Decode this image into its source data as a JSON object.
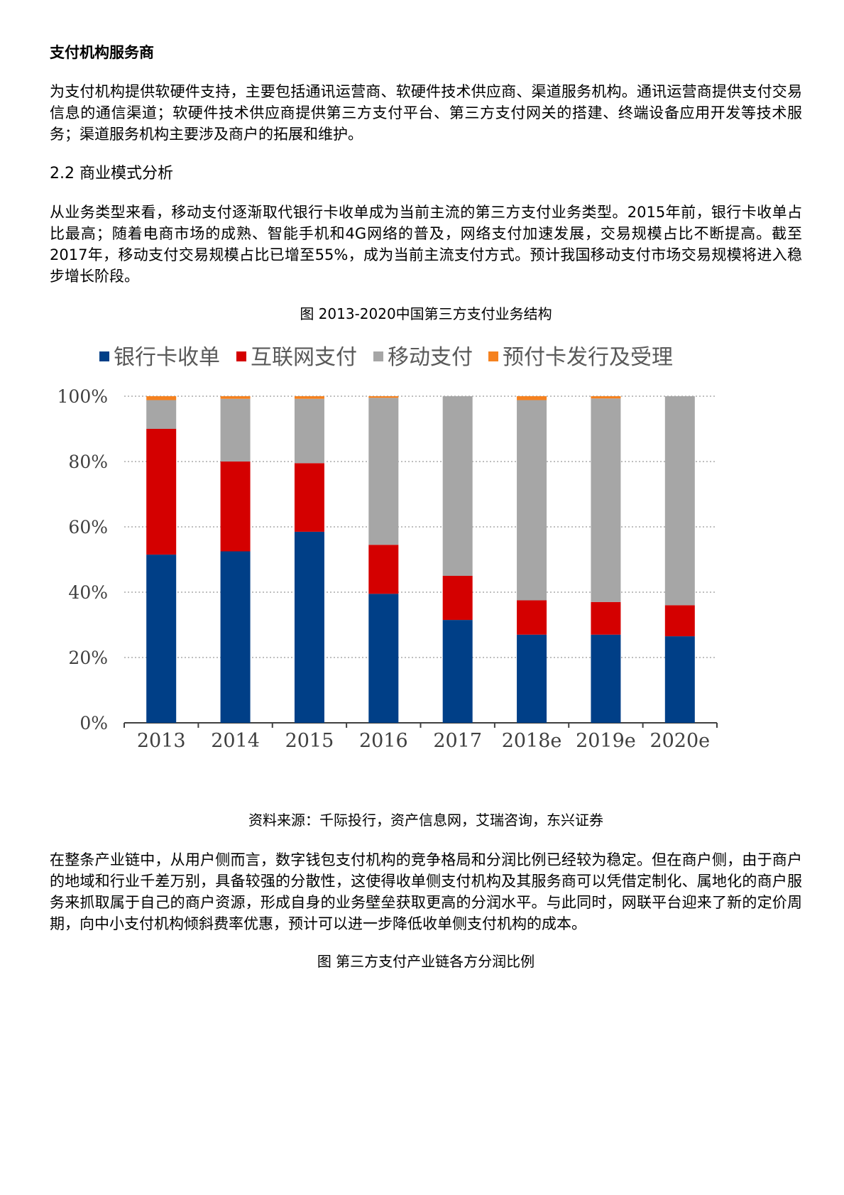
{
  "section1": {
    "heading": "支付机构服务商",
    "body": "为支付机构提供软硬件支持，主要包括通讯运营商、软硬件技术供应商、渠道服务机构。通讯运营商提供支付交易信息的通信渠道；软硬件技术供应商提供第三方支付平台、第三方支付网关的搭建、终端设备应用开发等技术服务；渠道服务机构主要涉及商户的拓展和维护。"
  },
  "section2": {
    "heading": "2.2 商业模式分析",
    "body": "从业务类型来看，移动支付逐渐取代银行卡收单成为当前主流的第三方支付业务类型。2015年前，银行卡收单占比最高；随着电商市场的成熟、智能手机和4G网络的普及，网络支付加速发展，交易规模占比不断提高。截至2017年，移动支付交易规模占比已增至55%，成为当前主流支付方式。预计我国移动支付市场交易规模将进入稳步增长阶段。"
  },
  "figure1": {
    "caption": "图 2013-2020中国第三方支付业务结构",
    "source": "资料来源：千际投行，资产信息网，艾瑞咨询，东兴证券"
  },
  "chart_data": {
    "type": "bar",
    "stacked": true,
    "categories": [
      "2013",
      "2014",
      "2015",
      "2016",
      "2017",
      "2018e",
      "2019e",
      "2020e"
    ],
    "series": [
      {
        "name": "银行卡收单",
        "color": "#003f87",
        "values": [
          51.5,
          52.5,
          58.5,
          39.5,
          31.5,
          27.0,
          27.0,
          26.5
        ]
      },
      {
        "name": "互联网支付",
        "color": "#d40000",
        "values": [
          38.5,
          27.5,
          21.0,
          15.0,
          13.5,
          10.5,
          10.0,
          9.5
        ]
      },
      {
        "name": "移动支付",
        "color": "#a6a6a6",
        "values": [
          8.8,
          19.2,
          19.7,
          45.0,
          55.0,
          61.3,
          62.3,
          64.0
        ]
      },
      {
        "name": "预付卡发行及受理",
        "color": "#f58220",
        "values": [
          1.2,
          0.8,
          0.8,
          0.5,
          0.0,
          1.2,
          0.7,
          0.0
        ]
      }
    ],
    "ylim": [
      0,
      100
    ],
    "yticks": [
      "0%",
      "20%",
      "40%",
      "60%",
      "80%",
      "100%"
    ],
    "grid": true,
    "legend": "top"
  },
  "section3": {
    "body": "在整条产业链中，从用户侧而言，数字钱包支付机构的竞争格局和分润比例已经较为稳定。但在商户侧，由于商户的地域和行业千差万别，具备较强的分散性，这使得收单侧支付机构及其服务商可以凭借定制化、属地化的商户服务来抓取属于自己的商户资源，形成自身的业务壁垒获取更高的分润水平。与此同时，网联平台迎来了新的定价周期，向中小支付机构倾斜费率优惠，预计可以进一步降低收单侧支付机构的成本。"
  },
  "figure2": {
    "caption": "图 第三方支付产业链各方分润比例"
  }
}
